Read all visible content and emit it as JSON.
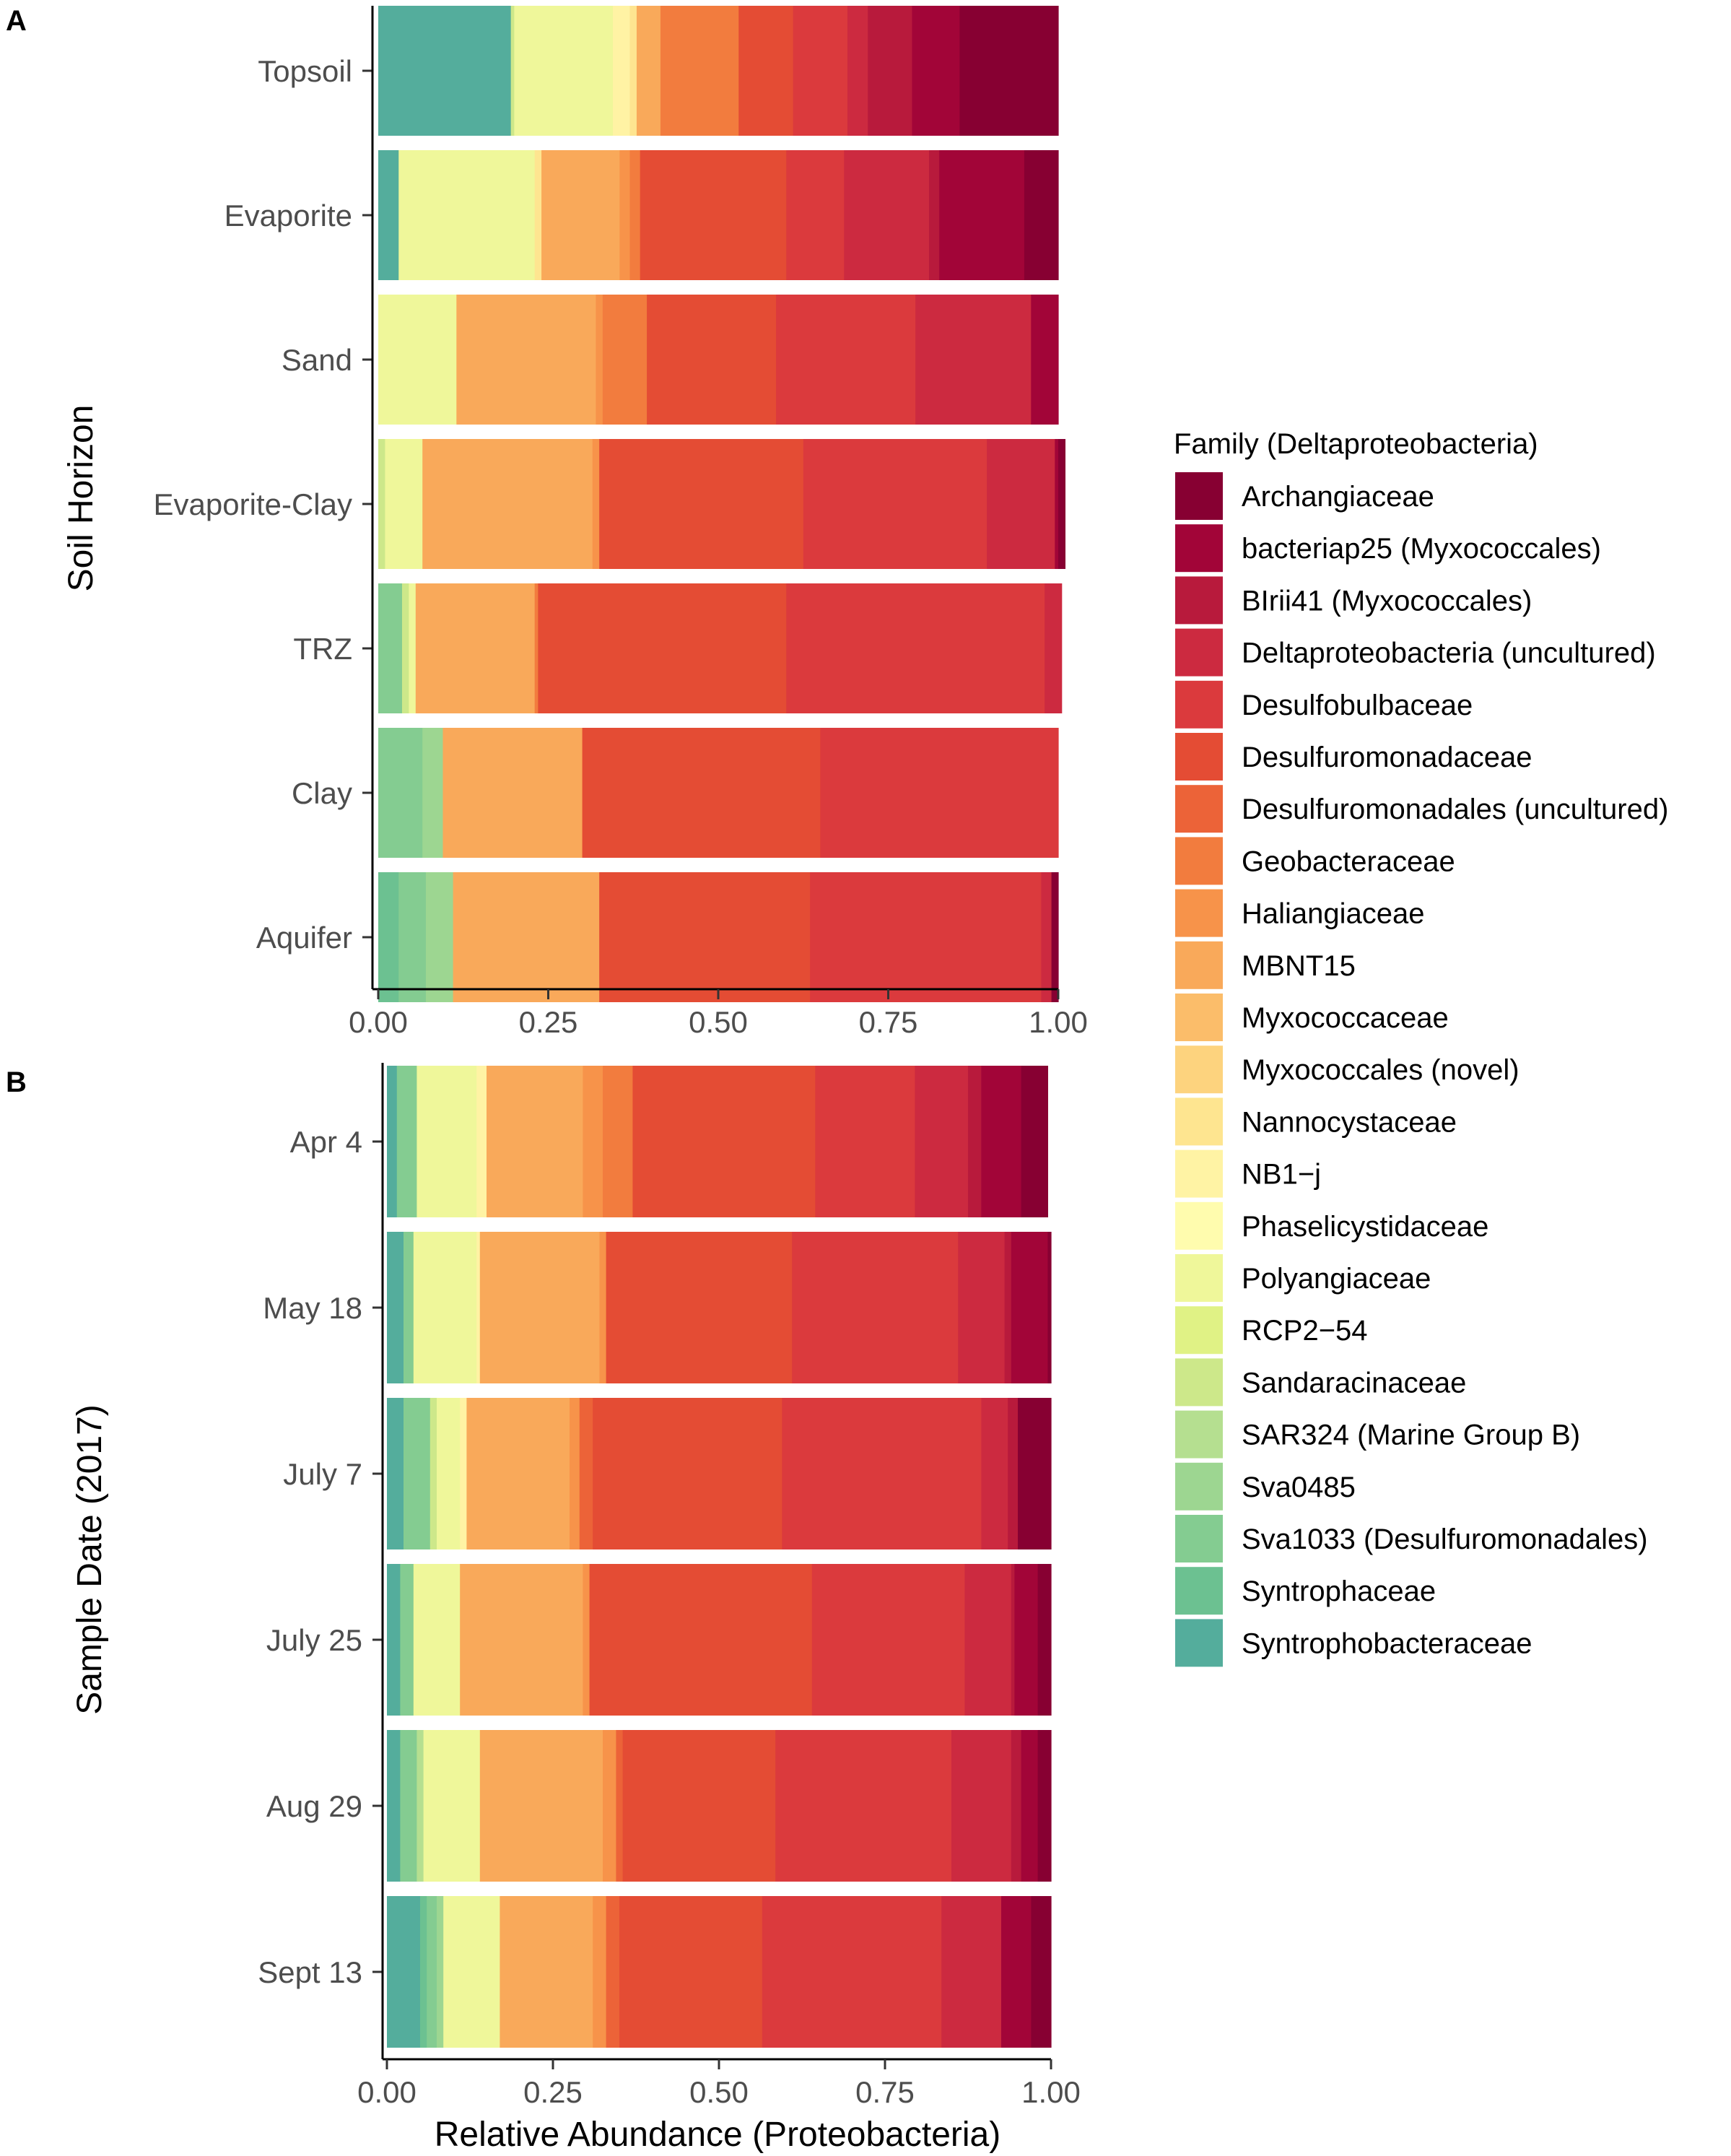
{
  "legend": {
    "title": "Family (Deltaproteobacteria)",
    "families": [
      {
        "name": "Archangiaceae",
        "color": "#870032"
      },
      {
        "name": "bacteriap25 (Myxococcales)",
        "color": "#a20538"
      },
      {
        "name": "BIrii41 (Myxococcales)",
        "color": "#b81a3c"
      },
      {
        "name": "Deltaproteobacteria (uncultured)",
        "color": "#cc2a40"
      },
      {
        "name": "Desulfobulbaceae",
        "color": "#db3a3d"
      },
      {
        "name": "Desulfuromonadaceae",
        "color": "#e44c34"
      },
      {
        "name": "Desulfuromonadales (uncultured)",
        "color": "#ec6338"
      },
      {
        "name": "Geobacteraceae",
        "color": "#f27c3e"
      },
      {
        "name": "Haliangiaceae",
        "color": "#f7934a"
      },
      {
        "name": "MBNT15",
        "color": "#f9a95a"
      },
      {
        "name": "Myxococcaceae",
        "color": "#fbbd6a"
      },
      {
        "name": "Myxococcales (novel)",
        "color": "#fdd37e"
      },
      {
        "name": "Nannocystaceae",
        "color": "#fee590"
      },
      {
        "name": "NB1−j",
        "color": "#fff3a4"
      },
      {
        "name": "Phaselicystidaceae",
        "color": "#fffcae"
      },
      {
        "name": "Polyangiaceae",
        "color": "#eff79a"
      },
      {
        "name": "RCP2−54",
        "color": "#e0f285"
      },
      {
        "name": "Sandaracinaceae",
        "color": "#cde88a"
      },
      {
        "name": "SAR324 (Marine Group B)",
        "color": "#b5df90"
      },
      {
        "name": "Sva0485",
        "color": "#9dd691"
      },
      {
        "name": "Sva1033 (Desulfuromonadales)",
        "color": "#84cc91"
      },
      {
        "name": "Syntrophaceae",
        "color": "#6cc191"
      },
      {
        "name": "Syntrophobacteraceae",
        "color": "#54ad9c"
      }
    ]
  },
  "chart_data": [
    {
      "type": "bar",
      "orientation": "horizontal",
      "stacked": true,
      "panel": "A",
      "ylabel": "Soil Horizon",
      "xlabel": "",
      "xlim": [
        0,
        1
      ],
      "xticks": [
        "0.00",
        "0.25",
        "0.50",
        "0.75",
        "1.00"
      ],
      "categories": [
        "Topsoil",
        "Evaporite",
        "Sand",
        "Evaporite-Clay",
        "TRZ",
        "Clay",
        "Aquifer"
      ],
      "series": [
        {
          "name": "Syntrophobacteraceae",
          "values": [
            0.195,
            0.03,
            0.0,
            0.0,
            0.0,
            0.0,
            0.0
          ]
        },
        {
          "name": "Syntrophaceae",
          "values": [
            0.0,
            0.0,
            0.0,
            0.0,
            0.0,
            0.0,
            0.03
          ]
        },
        {
          "name": "Sva1033 (Desulfuromonadales)",
          "values": [
            0.0,
            0.0,
            0.0,
            0.0,
            0.035,
            0.065,
            0.04
          ]
        },
        {
          "name": "Sva0485",
          "values": [
            0.0,
            0.0,
            0.0,
            0.0,
            0.0,
            0.03,
            0.04
          ]
        },
        {
          "name": "SAR324 (Marine Group B)",
          "values": [
            0.0,
            0.0,
            0.0,
            0.0,
            0.0,
            0.0,
            0.0
          ]
        },
        {
          "name": "Sandaracinaceae",
          "values": [
            0.005,
            0.0,
            0.0,
            0.01,
            0.01,
            0.0,
            0.0
          ]
        },
        {
          "name": "RCP2−54",
          "values": [
            0.0,
            0.0,
            0.0,
            0.0,
            0.0,
            0.0,
            0.0
          ]
        },
        {
          "name": "Polyangiaceae",
          "values": [
            0.145,
            0.2,
            0.115,
            0.055,
            0.01,
            0.0,
            0.0
          ]
        },
        {
          "name": "Phaselicystidaceae",
          "values": [
            0.0,
            0.0,
            0.0,
            0.0,
            0.0,
            0.0,
            0.0
          ]
        },
        {
          "name": "NB1−j",
          "values": [
            0.025,
            0.0,
            0.0,
            0.0,
            0.0,
            0.0,
            0.0
          ]
        },
        {
          "name": "Nannocystaceae",
          "values": [
            0.01,
            0.01,
            0.0,
            0.0,
            0.0,
            0.0,
            0.0
          ]
        },
        {
          "name": "Myxococcales (novel)",
          "values": [
            0.0,
            0.0,
            0.0,
            0.0,
            0.0,
            0.0,
            0.0
          ]
        },
        {
          "name": "Myxococcaceae",
          "values": [
            0.0,
            0.0,
            0.0,
            0.0,
            0.0,
            0.0,
            0.0
          ]
        },
        {
          "name": "MBNT15",
          "values": [
            0.035,
            0.115,
            0.205,
            0.25,
            0.175,
            0.205,
            0.215
          ]
        },
        {
          "name": "Haliangiaceae",
          "values": [
            0.0,
            0.015,
            0.01,
            0.01,
            0.0,
            0.0,
            0.0
          ]
        },
        {
          "name": "Geobacteraceae",
          "values": [
            0.115,
            0.015,
            0.065,
            0.0,
            0.005,
            0.0,
            0.0
          ]
        },
        {
          "name": "Desulfuromonadales (uncultured)",
          "values": [
            0.0,
            0.0,
            0.0,
            0.0,
            0.0,
            0.0,
            0.0
          ]
        },
        {
          "name": "Desulfuromonadaceae",
          "values": [
            0.08,
            0.215,
            0.19,
            0.3,
            0.365,
            0.35,
            0.31
          ]
        },
        {
          "name": "Desulfobulbaceae",
          "values": [
            0.08,
            0.085,
            0.205,
            0.27,
            0.38,
            0.35,
            0.34
          ]
        },
        {
          "name": "Deltaproteobacteria (uncultured)",
          "values": [
            0.03,
            0.125,
            0.17,
            0.1,
            0.025,
            0.0,
            0.015
          ]
        },
        {
          "name": "BIrii41 (Myxococcales)",
          "values": [
            0.065,
            0.015,
            0.0,
            0.0,
            0.0,
            0.0,
            0.0
          ]
        },
        {
          "name": "bacteriap25 (Myxococcales)",
          "values": [
            0.07,
            0.125,
            0.04,
            0.005,
            0.0,
            0.0,
            0.0
          ]
        },
        {
          "name": "Archangiaceae",
          "values": [
            0.145,
            0.05,
            0.0,
            0.01,
            0.0,
            0.0,
            0.01
          ]
        }
      ]
    },
    {
      "type": "bar",
      "orientation": "horizontal",
      "stacked": true,
      "panel": "B",
      "ylabel": "Sample Date (2017)",
      "xlabel": "Relative Abundance (Proteobacteria)",
      "xlim": [
        0,
        1
      ],
      "xticks": [
        "0.00",
        "0.25",
        "0.50",
        "0.75",
        "1.00"
      ],
      "categories": [
        "Apr 4",
        "May 18",
        "July 7",
        "July 25",
        "Aug 29",
        "Sept 13"
      ],
      "series": [
        {
          "name": "Syntrophobacteraceae",
          "values": [
            0.015,
            0.025,
            0.025,
            0.02,
            0.02,
            0.05
          ]
        },
        {
          "name": "Syntrophaceae",
          "values": [
            0.0,
            0.0,
            0.0,
            0.0,
            0.0,
            0.01
          ]
        },
        {
          "name": "Sva1033 (Desulfuromonadales)",
          "values": [
            0.03,
            0.015,
            0.04,
            0.02,
            0.025,
            0.015
          ]
        },
        {
          "name": "Sva0485",
          "values": [
            0.0,
            0.0,
            0.0,
            0.0,
            0.0,
            0.01
          ]
        },
        {
          "name": "SAR324 (Marine Group B)",
          "values": [
            0.0,
            0.0,
            0.0,
            0.0,
            0.01,
            0.0
          ]
        },
        {
          "name": "Sandaracinaceae",
          "values": [
            0.0,
            0.0,
            0.01,
            0.0,
            0.0,
            0.0
          ]
        },
        {
          "name": "RCP2−54",
          "values": [
            0.0,
            0.0,
            0.0,
            0.0,
            0.0,
            0.0
          ]
        },
        {
          "name": "Polyangiaceae",
          "values": [
            0.09,
            0.095,
            0.035,
            0.07,
            0.085,
            0.085
          ]
        },
        {
          "name": "Phaselicystidaceae",
          "values": [
            0.0,
            0.0,
            0.0,
            0.0,
            0.0,
            0.0
          ]
        },
        {
          "name": "NB1−j",
          "values": [
            0.015,
            0.005,
            0.01,
            0.0,
            0.0,
            0.0
          ]
        },
        {
          "name": "Nannocystaceae",
          "values": [
            0.0,
            0.0,
            0.0,
            0.0,
            0.0,
            0.0
          ]
        },
        {
          "name": "Myxococcales (novel)",
          "values": [
            0.0,
            0.0,
            0.0,
            0.0,
            0.0,
            0.0
          ]
        },
        {
          "name": "Myxococcaceae",
          "values": [
            0.0,
            0.0,
            0.0,
            0.0,
            0.0,
            0.0
          ]
        },
        {
          "name": "MBNT15",
          "values": [
            0.145,
            0.18,
            0.155,
            0.185,
            0.185,
            0.14
          ]
        },
        {
          "name": "Haliangiaceae",
          "values": [
            0.03,
            0.01,
            0.015,
            0.01,
            0.02,
            0.02
          ]
        },
        {
          "name": "Geobacteraceae",
          "values": [
            0.045,
            0.0,
            0.0,
            0.0,
            0.0,
            0.0
          ]
        },
        {
          "name": "Desulfuromonadales (uncultured)",
          "values": [
            0.0,
            0.0,
            0.02,
            0.0,
            0.01,
            0.02
          ]
        },
        {
          "name": "Desulfuromonadaceae",
          "values": [
            0.275,
            0.28,
            0.285,
            0.335,
            0.23,
            0.215
          ]
        },
        {
          "name": "Desulfobulbaceae",
          "values": [
            0.15,
            0.25,
            0.3,
            0.23,
            0.265,
            0.27
          ]
        },
        {
          "name": "Deltaproteobacteria (uncultured)",
          "values": [
            0.08,
            0.07,
            0.04,
            0.07,
            0.09,
            0.09
          ]
        },
        {
          "name": "BIrii41 (Myxococcales)",
          "values": [
            0.02,
            0.01,
            0.015,
            0.005,
            0.015,
            0.0
          ]
        },
        {
          "name": "bacteriap25 (Myxococcales)",
          "values": [
            0.06,
            0.055,
            0.0,
            0.035,
            0.025,
            0.045
          ]
        },
        {
          "name": "Archangiaceae",
          "values": [
            0.04,
            0.005,
            0.05,
            0.02,
            0.02,
            0.03
          ]
        }
      ]
    }
  ]
}
